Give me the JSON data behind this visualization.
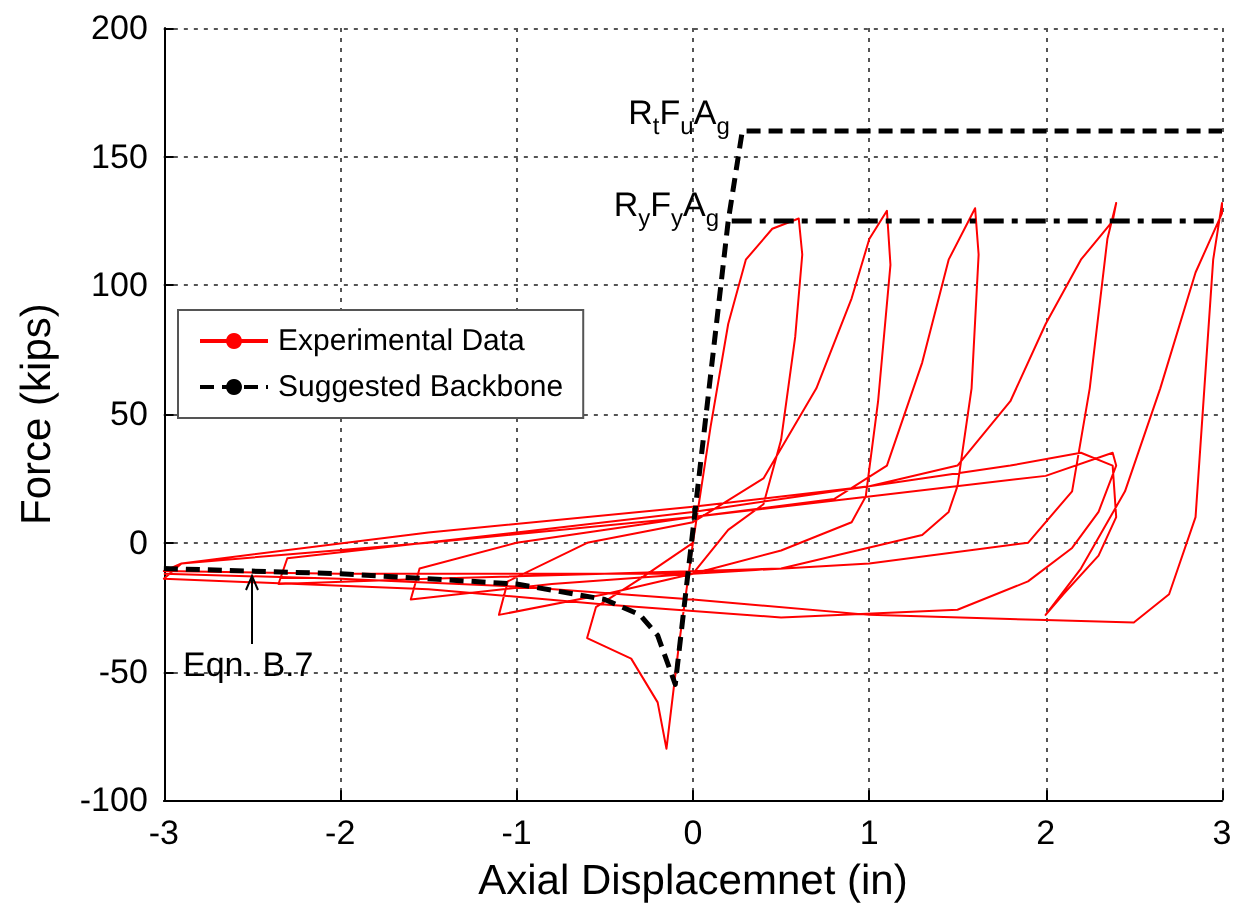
{
  "chart_data": {
    "type": "line",
    "xlabel": "Axial Displacemnet (in)",
    "ylabel": "Force (kips)",
    "xlim": [
      -3,
      3
    ],
    "xticks": [
      -3,
      -2,
      -1,
      0,
      1,
      2,
      3
    ],
    "ylim": [
      -100,
      200
    ],
    "yticks": [
      -100,
      -50,
      0,
      50,
      100,
      150,
      200
    ],
    "grid": true,
    "legend": "left",
    "marker": "none",
    "series": [
      {
        "name": "Experimental Data",
        "color": "#ff0000",
        "line_style": "solid",
        "x": [
          0,
          -0.08,
          -0.15,
          -0.2,
          -0.35,
          -0.6,
          -0.55,
          -0.3,
          0,
          0.1,
          0.2,
          0.3,
          0.45,
          0.6,
          0.62,
          0.58,
          0.5,
          0.4,
          0.2,
          0,
          -0.5,
          -1.1,
          -1.05,
          -0.6,
          0,
          0.4,
          0.7,
          0.9,
          1.0,
          1.1,
          1.12,
          1.05,
          0.98,
          0.9,
          0.5,
          0,
          -0.8,
          -1.6,
          -1.55,
          -1,
          0,
          0.8,
          1.1,
          1.3,
          1.45,
          1.6,
          1.62,
          1.58,
          1.5,
          1.45,
          1.3,
          0.5,
          -0.5,
          -1.5,
          -2.35,
          -2.3,
          -1,
          0,
          1,
          1.5,
          1.8,
          2.0,
          2.2,
          2.38,
          2.4,
          2.35,
          2.25,
          2.15,
          1.9,
          1,
          0,
          -1,
          -2,
          -3,
          -2.9,
          -1.5,
          0,
          1,
          2,
          2.38,
          2.4,
          2.3,
          2.15,
          1.9,
          1.5,
          0.5,
          -0.5,
          -1.5,
          -3,
          -2.9,
          -1.5,
          0,
          1,
          1.8,
          2.2,
          2.38,
          2.4,
          2.3,
          2.1,
          2.0,
          2.2,
          2.45,
          2.65,
          2.85,
          3,
          3,
          2.95,
          2.9,
          2.85,
          2.7,
          2.5,
          2.0,
          1.0,
          0,
          -1,
          -2,
          -3
        ],
        "values": [
          0,
          -40,
          -80,
          -62,
          -45,
          -37,
          -25,
          -14,
          0,
          45,
          85,
          110,
          122,
          126,
          112,
          80,
          40,
          15,
          5,
          -12,
          -20,
          -28,
          -15,
          0,
          8,
          25,
          60,
          95,
          118,
          129,
          108,
          55,
          18,
          8,
          -3,
          -12,
          -16,
          -22,
          -10,
          0,
          10,
          17,
          30,
          70,
          110,
          130,
          112,
          60,
          22,
          12,
          3,
          -10,
          -12,
          -14,
          -16,
          -6,
          4,
          12,
          22,
          30,
          55,
          85,
          110,
          125,
          132,
          118,
          60,
          20,
          0,
          -8,
          -12,
          -12,
          -12,
          -11,
          -8,
          0,
          10,
          18,
          26,
          35,
          30,
          12,
          -2,
          -15,
          -26,
          -29,
          -24,
          -18,
          -14,
          -8,
          4,
          14,
          22,
          30,
          35,
          30,
          10,
          -5,
          -20,
          -28,
          -10,
          20,
          60,
          105,
          128,
          132,
          110,
          60,
          10,
          -20,
          -31,
          -30,
          -28,
          -22,
          -17,
          -14,
          -12
        ]
      },
      {
        "name": "Suggested Backbone",
        "color": "#000000",
        "line_style": "dashed",
        "x": [
          -3,
          -2,
          -1,
          -0.5,
          -0.3,
          -0.2,
          -0.1,
          0.2,
          0.28,
          3
        ],
        "values": [
          -10,
          -12,
          -16,
          -22,
          -28,
          -36,
          -55,
          125,
          160,
          160
        ]
      },
      {
        "color": "#000000",
        "line_style": "dashdot",
        "x": [
          0.22,
          3
        ],
        "values": [
          125,
          125
        ]
      }
    ],
    "annotations": [
      {
        "text": "R$_{t}$F$_{u}$A$_{g}$",
        "x": 0.28,
        "y": 160
      },
      {
        "text": "R$_{y}$F$_{y}$A$_{g}$",
        "x": 0.22,
        "y": 125
      },
      {
        "text": "Eqn. B.7",
        "x": -2.5,
        "y": -10
      }
    ]
  }
}
